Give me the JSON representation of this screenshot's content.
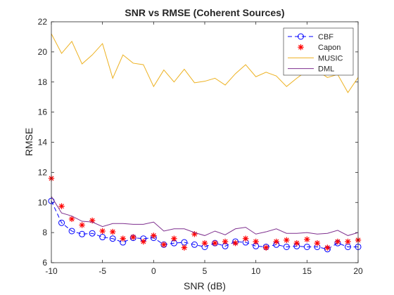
{
  "chart_data": {
    "type": "line",
    "title": "SNR vs RMSE (Coherent Sources)",
    "xlabel": "SNR (dB)",
    "ylabel": "RMSE",
    "xlim": [
      -10,
      20
    ],
    "ylim": [
      6,
      22
    ],
    "xticks": [
      -10,
      -5,
      0,
      5,
      10,
      15,
      20
    ],
    "yticks": [
      6,
      8,
      10,
      12,
      14,
      16,
      18,
      20,
      22
    ],
    "grid": false,
    "legend_position": "top-right",
    "x": [
      -10,
      -9,
      -8,
      -7,
      -6,
      -5,
      -4,
      -3,
      -2,
      -1,
      0,
      1,
      2,
      3,
      4,
      5,
      6,
      7,
      8,
      9,
      10,
      11,
      12,
      13,
      14,
      15,
      16,
      17,
      18,
      19,
      20
    ],
    "series": [
      {
        "name": "CBF",
        "color": "#0000ff",
        "line": "dashed",
        "marker": "circle",
        "values": [
          10.1,
          8.65,
          8.1,
          7.9,
          7.95,
          7.7,
          7.6,
          7.35,
          7.65,
          7.6,
          7.65,
          7.2,
          7.3,
          7.35,
          7.2,
          7.05,
          7.3,
          7.1,
          7.4,
          7.35,
          7.1,
          7.05,
          7.2,
          7.05,
          7.1,
          7.05,
          7.05,
          6.9,
          7.3,
          7.05,
          7.05
        ]
      },
      {
        "name": "Capon",
        "color": "#ff0000",
        "line": "none",
        "marker": "asterisk",
        "values": [
          11.6,
          9.75,
          8.9,
          8.5,
          8.8,
          8.1,
          8.05,
          7.6,
          7.7,
          7.4,
          7.8,
          7.2,
          7.6,
          7.0,
          7.9,
          7.3,
          7.3,
          7.4,
          7.3,
          7.6,
          7.4,
          7.0,
          7.4,
          7.5,
          7.3,
          7.55,
          7.3,
          7.0,
          7.4,
          7.4,
          7.5
        ]
      },
      {
        "name": "MUSIC",
        "color": "#edb120",
        "line": "solid",
        "marker": "none",
        "values": [
          21.2,
          19.9,
          20.7,
          19.2,
          19.8,
          20.55,
          18.25,
          19.8,
          19.25,
          19.15,
          17.7,
          18.8,
          18.0,
          18.85,
          17.95,
          18.05,
          18.25,
          17.8,
          18.55,
          19.15,
          18.35,
          18.65,
          18.4,
          17.7,
          18.25,
          18.75,
          18.75,
          18.3,
          18.5,
          17.3,
          18.3
        ]
      },
      {
        "name": "DML",
        "color": "#7e2f8e",
        "line": "solid",
        "marker": "none",
        "values": [
          10.4,
          9.3,
          9.1,
          8.75,
          8.7,
          8.4,
          8.6,
          8.6,
          8.55,
          8.55,
          8.7,
          8.1,
          8.25,
          8.25,
          8.0,
          7.8,
          8.1,
          7.85,
          8.25,
          8.35,
          7.9,
          8.05,
          8.25,
          7.95,
          7.95,
          8.0,
          7.9,
          7.95,
          8.15,
          7.8,
          8.0
        ]
      }
    ]
  }
}
